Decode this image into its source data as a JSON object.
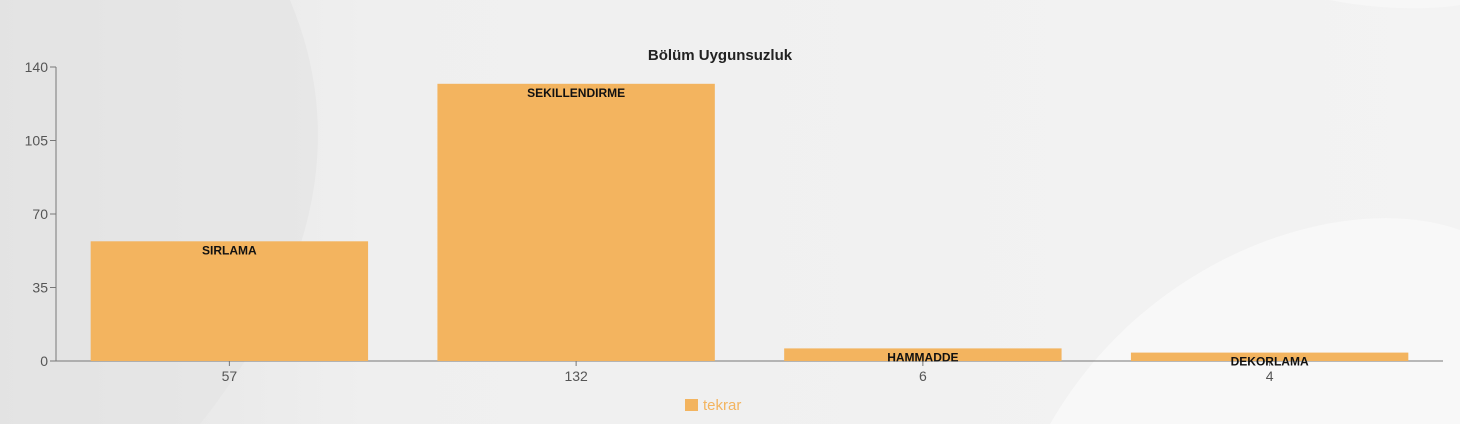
{
  "chart_data": {
    "type": "bar",
    "title": "Bölüm Uygunsuzluk",
    "categories": [
      "57",
      "132",
      "6",
      "4"
    ],
    "bar_labels": [
      "SIRLAMA",
      "SEKILLENDIRME",
      "HAMMADDE",
      "DEKORLAMA"
    ],
    "series": [
      {
        "name": "tekrar",
        "values": [
          57,
          132,
          6,
          4
        ],
        "color": "#f3b45f"
      }
    ],
    "ylim": [
      0,
      140
    ],
    "yticks": [
      "0",
      "35",
      "70",
      "105",
      "140"
    ],
    "xlabel": "",
    "ylabel": "",
    "legend_position": "bottom-center",
    "grid": false
  },
  "colors": {
    "bar": "#f3b45f",
    "legend_text": "#f3b45f",
    "axis": "#777777"
  }
}
